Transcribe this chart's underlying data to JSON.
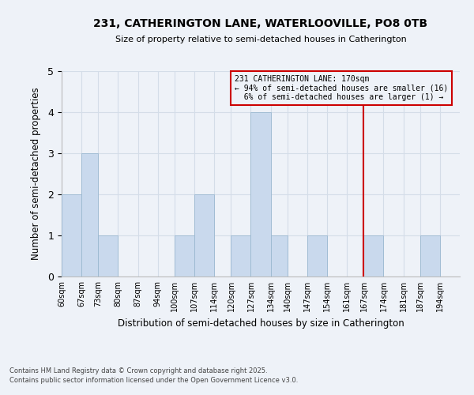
{
  "title": "231, CATHERINGTON LANE, WATERLOOVILLE, PO8 0TB",
  "subtitle": "Size of property relative to semi-detached houses in Catherington",
  "xlabel": "Distribution of semi-detached houses by size in Catherington",
  "ylabel": "Number of semi-detached properties",
  "bins": [
    60,
    67,
    73,
    80,
    87,
    94,
    100,
    107,
    114,
    120,
    127,
    134,
    140,
    147,
    154,
    161,
    167,
    174,
    181,
    187,
    194
  ],
  "bin_labels": [
    "60sqm",
    "67sqm",
    "73sqm",
    "80sqm",
    "87sqm",
    "94sqm",
    "100sqm",
    "107sqm",
    "114sqm",
    "120sqm",
    "127sqm",
    "134sqm",
    "140sqm",
    "147sqm",
    "154sqm",
    "161sqm",
    "167sqm",
    "174sqm",
    "181sqm",
    "187sqm",
    "194sqm"
  ],
  "counts": [
    2,
    3,
    1,
    0,
    0,
    0,
    1,
    2,
    0,
    1,
    4,
    1,
    0,
    1,
    0,
    0,
    1,
    0,
    0,
    1
  ],
  "bar_color": "#c9d9ed",
  "bar_edge_color": "#9ab8d0",
  "grid_color": "#d4dde8",
  "background_color": "#eef2f8",
  "vline_color": "#cc0000",
  "annotation_text": "231 CATHERINGTON LANE: 170sqm\n← 94% of semi-detached houses are smaller (16)\n  6% of semi-detached houses are larger (1) →",
  "annotation_box_facecolor": "#eef2f8",
  "annotation_box_edgecolor": "#cc0000",
  "ylim": [
    0,
    5
  ],
  "yticks": [
    0,
    1,
    2,
    3,
    4,
    5
  ],
  "footer1": "Contains HM Land Registry data © Crown copyright and database right 2025.",
  "footer2": "Contains public sector information licensed under the Open Government Licence v3.0."
}
